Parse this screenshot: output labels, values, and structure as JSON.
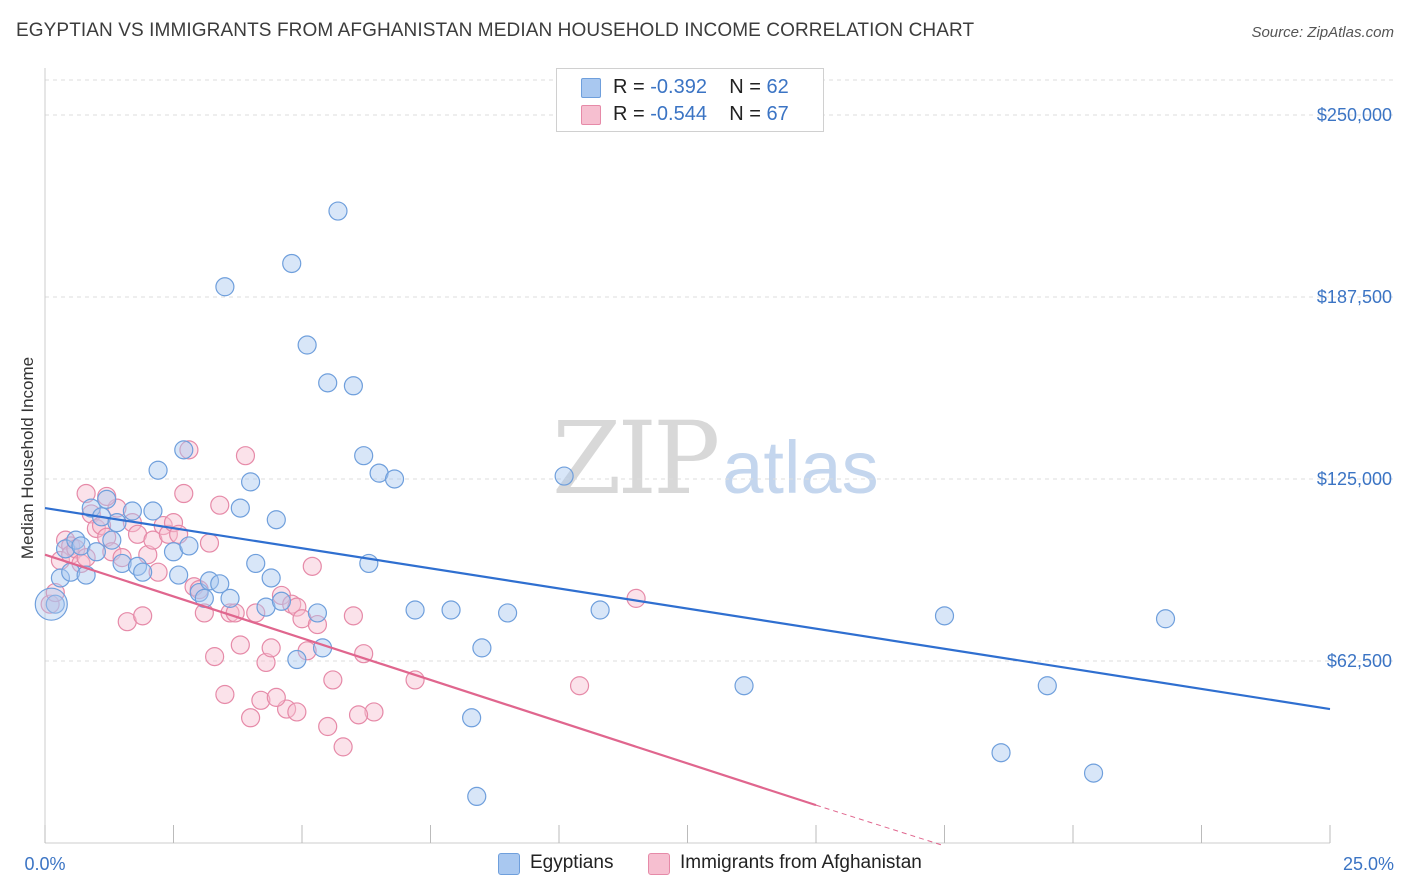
{
  "header": {
    "title": "EGYPTIAN VS IMMIGRANTS FROM AFGHANISTAN MEDIAN HOUSEHOLD INCOME CORRELATION CHART",
    "source": "Source: ZipAtlas.com"
  },
  "watermark": {
    "zip": "ZIP",
    "atlas": "atlas"
  },
  "legend": {
    "r_label": "R =",
    "n_label": "N =",
    "rows": [
      {
        "r": "-0.392",
        "n": "62"
      },
      {
        "r": "-0.544",
        "n": "67"
      }
    ]
  },
  "colors": {
    "blue_fill": "#a9c8f0",
    "blue_stroke": "#6f9fdc",
    "blue_line": "#2f6fd0",
    "pink_fill": "#f6bfd0",
    "pink_stroke": "#e68aa8",
    "pink_line": "#e0668e",
    "accent_text": "#3b74c4",
    "grid": "#dddddd"
  },
  "chart_data": {
    "type": "scatter",
    "title": "EGYPTIAN VS IMMIGRANTS FROM AFGHANISTAN MEDIAN HOUSEHOLD INCOME CORRELATION CHART",
    "xlabel": "",
    "ylabel": "Median Household Income",
    "xlim": [
      0,
      25
    ],
    "ylim": [
      0,
      262000
    ],
    "x_tick_labels": [
      "0.0%",
      "25.0%"
    ],
    "y_ticks": [
      62500,
      125000,
      187500,
      250000
    ],
    "y_tick_labels": [
      "$62,500",
      "$125,000",
      "$187,500",
      "$250,000"
    ],
    "grid": "horizontal dashed",
    "legend_position": "top-center and bottom",
    "series": [
      {
        "name": "Egyptians",
        "r": -0.392,
        "n": 62,
        "trend": {
          "x": [
            0,
            25
          ],
          "y": [
            115000,
            46000
          ]
        },
        "points": [
          [
            0.2,
            82000
          ],
          [
            0.3,
            91000
          ],
          [
            0.4,
            101000
          ],
          [
            0.5,
            93000
          ],
          [
            0.6,
            104000
          ],
          [
            0.7,
            102000
          ],
          [
            0.8,
            92000
          ],
          [
            0.9,
            115000
          ],
          [
            1.0,
            100000
          ],
          [
            1.1,
            112000
          ],
          [
            1.2,
            118000
          ],
          [
            1.3,
            104000
          ],
          [
            1.5,
            96000
          ],
          [
            1.7,
            114000
          ],
          [
            1.8,
            95000
          ],
          [
            1.9,
            93000
          ],
          [
            2.1,
            114000
          ],
          [
            2.2,
            128000
          ],
          [
            2.5,
            100000
          ],
          [
            2.6,
            92000
          ],
          [
            2.7,
            135000
          ],
          [
            2.8,
            102000
          ],
          [
            3.0,
            86000
          ],
          [
            3.1,
            84000
          ],
          [
            3.2,
            90000
          ],
          [
            3.4,
            89000
          ],
          [
            3.5,
            191000
          ],
          [
            3.6,
            84000
          ],
          [
            3.8,
            115000
          ],
          [
            4.1,
            96000
          ],
          [
            4.3,
            81000
          ],
          [
            4.0,
            124000
          ],
          [
            4.4,
            91000
          ],
          [
            4.5,
            111000
          ],
          [
            4.6,
            83000
          ],
          [
            4.8,
            199000
          ],
          [
            4.9,
            63000
          ],
          [
            5.1,
            171000
          ],
          [
            5.3,
            79000
          ],
          [
            5.4,
            67000
          ],
          [
            5.5,
            158000
          ],
          [
            5.7,
            217000
          ],
          [
            6.0,
            157000
          ],
          [
            6.2,
            133000
          ],
          [
            6.3,
            96000
          ],
          [
            6.5,
            127000
          ],
          [
            6.8,
            125000
          ],
          [
            7.2,
            80000
          ],
          [
            7.9,
            80000
          ],
          [
            8.3,
            43000
          ],
          [
            8.4,
            16000
          ],
          [
            8.5,
            67000
          ],
          [
            9.0,
            79000
          ],
          [
            10.1,
            126000
          ],
          [
            10.8,
            80000
          ],
          [
            13.6,
            54000
          ],
          [
            17.5,
            78000
          ],
          [
            18.6,
            31000
          ],
          [
            19.5,
            54000
          ],
          [
            20.4,
            24000
          ],
          [
            21.8,
            77000
          ],
          [
            1.4,
            110000
          ]
        ]
      },
      {
        "name": "Immigrants from Afghanistan",
        "r": -0.544,
        "n": 67,
        "trend": {
          "x": [
            0,
            15
          ],
          "y": [
            99000,
            13000
          ],
          "dashed_to": [
            17.5,
            -1000
          ]
        },
        "points": [
          [
            0.1,
            82000
          ],
          [
            0.2,
            86000
          ],
          [
            0.3,
            97000
          ],
          [
            0.4,
            104000
          ],
          [
            0.5,
            102000
          ],
          [
            0.5,
            99000
          ],
          [
            0.6,
            101000
          ],
          [
            0.7,
            96000
          ],
          [
            0.8,
            98000
          ],
          [
            0.9,
            113000
          ],
          [
            1.0,
            108000
          ],
          [
            1.1,
            109000
          ],
          [
            1.2,
            105000
          ],
          [
            1.3,
            100000
          ],
          [
            1.4,
            115000
          ],
          [
            1.5,
            98000
          ],
          [
            1.6,
            76000
          ],
          [
            1.7,
            110000
          ],
          [
            1.8,
            106000
          ],
          [
            1.9,
            78000
          ],
          [
            2.0,
            99000
          ],
          [
            2.1,
            104000
          ],
          [
            2.2,
            93000
          ],
          [
            2.3,
            109000
          ],
          [
            2.4,
            106000
          ],
          [
            2.5,
            110000
          ],
          [
            2.6,
            106000
          ],
          [
            2.8,
            135000
          ],
          [
            2.9,
            88000
          ],
          [
            3.0,
            87000
          ],
          [
            3.1,
            79000
          ],
          [
            3.2,
            103000
          ],
          [
            3.3,
            64000
          ],
          [
            3.4,
            116000
          ],
          [
            3.5,
            51000
          ],
          [
            3.6,
            79000
          ],
          [
            3.7,
            79000
          ],
          [
            3.8,
            68000
          ],
          [
            3.9,
            133000
          ],
          [
            4.0,
            43000
          ],
          [
            4.1,
            79000
          ],
          [
            4.2,
            49000
          ],
          [
            4.3,
            62000
          ],
          [
            4.4,
            67000
          ],
          [
            4.6,
            85000
          ],
          [
            4.7,
            46000
          ],
          [
            4.8,
            82000
          ],
          [
            4.9,
            81000
          ],
          [
            5.0,
            77000
          ],
          [
            5.1,
            66000
          ],
          [
            5.2,
            95000
          ],
          [
            5.3,
            75000
          ],
          [
            5.5,
            40000
          ],
          [
            5.6,
            56000
          ],
          [
            5.8,
            33000
          ],
          [
            6.0,
            78000
          ],
          [
            6.2,
            65000
          ],
          [
            6.4,
            45000
          ],
          [
            7.2,
            56000
          ],
          [
            10.4,
            54000
          ],
          [
            11.5,
            84000
          ],
          [
            2.7,
            120000
          ],
          [
            1.2,
            119000
          ],
          [
            0.8,
            120000
          ],
          [
            4.5,
            50000
          ],
          [
            4.9,
            45000
          ],
          [
            6.1,
            44000
          ]
        ]
      }
    ]
  },
  "bottom_legend": [
    "Egyptians",
    "Immigrants from Afghanistan"
  ]
}
